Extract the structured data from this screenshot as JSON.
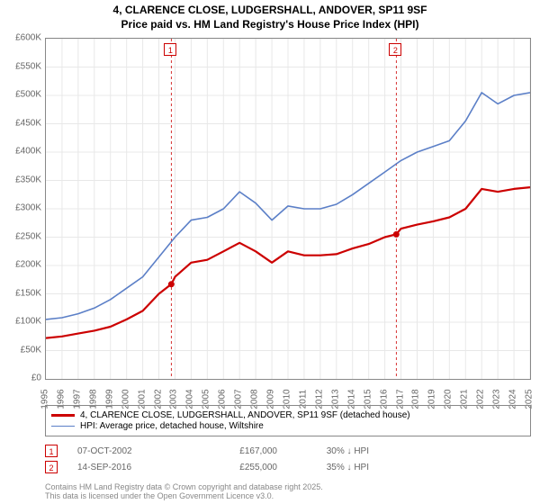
{
  "title_line1": "4, CLARENCE CLOSE, LUDGERSHALL, ANDOVER, SP11 9SF",
  "title_line2": "Price paid vs. HM Land Registry's House Price Index (HPI)",
  "chart": {
    "type": "line",
    "background_color": "#ffffff",
    "grid_color": "#e8e8e8",
    "axis_color": "#888888",
    "label_color": "#666666",
    "label_fontsize": 10,
    "ylim": [
      0,
      600000
    ],
    "ytick_step": 50000,
    "ytick_labels": [
      "£0",
      "£50K",
      "£100K",
      "£150K",
      "£200K",
      "£250K",
      "£300K",
      "£350K",
      "£400K",
      "£450K",
      "£500K",
      "£550K",
      "£600K"
    ],
    "xlim": [
      1995,
      2025
    ],
    "xtick_step": 1,
    "xtick_labels": [
      "1995",
      "1996",
      "1997",
      "1998",
      "1999",
      "2000",
      "2001",
      "2002",
      "2003",
      "2004",
      "2005",
      "2006",
      "2007",
      "2008",
      "2009",
      "2010",
      "2011",
      "2012",
      "2013",
      "2014",
      "2015",
      "2016",
      "2017",
      "2018",
      "2019",
      "2020",
      "2021",
      "2022",
      "2023",
      "2024",
      "2025"
    ],
    "series": [
      {
        "name": "price_paid",
        "color": "#cc0000",
        "line_width": 2.2,
        "x": [
          1995,
          1996,
          1997,
          1998,
          1999,
          2000,
          2001,
          2002,
          2002.77,
          2003,
          2004,
          2005,
          2006,
          2007,
          2008,
          2009,
          2010,
          2011,
          2012,
          2013,
          2014,
          2015,
          2016,
          2016.71,
          2017,
          2018,
          2019,
          2020,
          2021,
          2022,
          2023,
          2024,
          2025
        ],
        "y": [
          72000,
          75000,
          80000,
          85000,
          92000,
          105000,
          120000,
          150000,
          167000,
          180000,
          205000,
          210000,
          225000,
          240000,
          225000,
          205000,
          225000,
          218000,
          218000,
          220000,
          230000,
          238000,
          250000,
          255000,
          265000,
          272000,
          278000,
          285000,
          300000,
          335000,
          330000,
          335000,
          338000
        ]
      },
      {
        "name": "hpi",
        "color": "#5b7fc7",
        "line_width": 1.6,
        "x": [
          1995,
          1996,
          1997,
          1998,
          1999,
          2000,
          2001,
          2002,
          2003,
          2004,
          2005,
          2006,
          2007,
          2008,
          2009,
          2010,
          2011,
          2012,
          2013,
          2014,
          2015,
          2016,
          2017,
          2018,
          2019,
          2020,
          2021,
          2022,
          2023,
          2024,
          2025
        ],
        "y": [
          105000,
          108000,
          115000,
          125000,
          140000,
          160000,
          180000,
          215000,
          250000,
          280000,
          285000,
          300000,
          330000,
          310000,
          280000,
          305000,
          300000,
          300000,
          308000,
          325000,
          345000,
          365000,
          385000,
          400000,
          410000,
          420000,
          455000,
          505000,
          485000,
          500000,
          505000
        ]
      }
    ],
    "markers": [
      {
        "id": "1",
        "x": 2002.77,
        "y_line": 600000,
        "color": "#cc0000",
        "point_y": 167000
      },
      {
        "id": "2",
        "x": 2016.71,
        "y_line": 600000,
        "color": "#cc0000",
        "point_y": 255000
      }
    ]
  },
  "legend": {
    "items": [
      {
        "color": "#cc0000",
        "width": 2.2,
        "label": "4, CLARENCE CLOSE, LUDGERSHALL, ANDOVER, SP11 9SF (detached house)"
      },
      {
        "color": "#5b7fc7",
        "width": 1.6,
        "label": "HPI: Average price, detached house, Wiltshire"
      }
    ]
  },
  "transactions": [
    {
      "marker": "1",
      "marker_color": "#cc0000",
      "date": "07-OCT-2002",
      "price": "£167,000",
      "pct": "30% ↓ HPI"
    },
    {
      "marker": "2",
      "marker_color": "#cc0000",
      "date": "14-SEP-2016",
      "price": "£255,000",
      "pct": "35% ↓ HPI"
    }
  ],
  "attribution_line1": "Contains HM Land Registry data © Crown copyright and database right 2025.",
  "attribution_line2": "This data is licensed under the Open Government Licence v3.0."
}
